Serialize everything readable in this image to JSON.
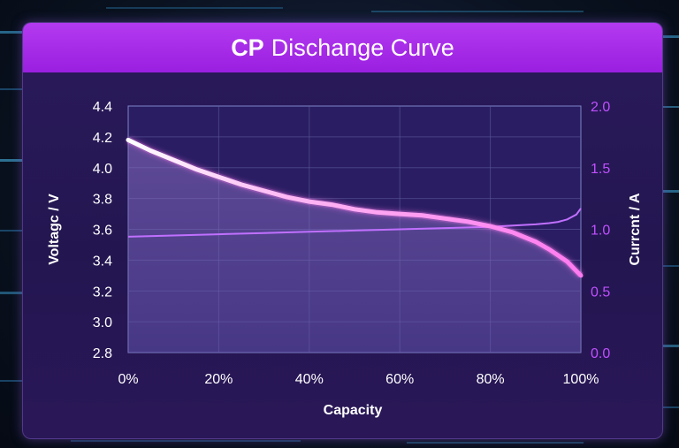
{
  "title_bold": "CP",
  "title_rest": "Dischange Curve",
  "colors": {
    "header": "#a52ae8",
    "voltage_curve": "#ff7af0",
    "current_curve": "#c070ff",
    "left_axis_text": "#ffffff",
    "right_axis_text": "#c050ff",
    "plot_bg": "#2a1d63"
  },
  "chart_data": {
    "type": "line",
    "title": "CP Dischange Curve",
    "xlabel": "Capacity",
    "ylabel_left": "Voltagc / V",
    "ylabel_right": "Currcnt / A",
    "x_ticks": [
      "0%",
      "20%",
      "40%",
      "60%",
      "80%",
      "100%"
    ],
    "y_left_ticks": [
      "2.8",
      "3.0",
      "3.2",
      "3.4",
      "3.6",
      "3.8",
      "4.0",
      "4.2",
      "4.4"
    ],
    "y_right_ticks": [
      "0.0",
      "0.5",
      "1.0",
      "1.5",
      "2.0"
    ],
    "xlim": [
      0,
      100
    ],
    "ylim_left": [
      2.8,
      4.4
    ],
    "ylim_right": [
      0.0,
      2.0
    ],
    "grid": true,
    "series": [
      {
        "axis": "left",
        "x": [
          0,
          5,
          10,
          15,
          20,
          25,
          30,
          35,
          40,
          45,
          50,
          55,
          60,
          65,
          70,
          75,
          80,
          85,
          90,
          93,
          95,
          97,
          98,
          99,
          100
        ],
        "values": [
          4.18,
          4.11,
          4.05,
          3.99,
          3.94,
          3.89,
          3.85,
          3.81,
          3.78,
          3.76,
          3.73,
          3.71,
          3.7,
          3.69,
          3.67,
          3.65,
          3.62,
          3.58,
          3.52,
          3.47,
          3.43,
          3.39,
          3.36,
          3.33,
          3.3
        ]
      },
      {
        "axis": "right",
        "x": [
          0,
          10,
          20,
          30,
          40,
          50,
          60,
          70,
          80,
          85,
          90,
          93,
          95,
          97,
          98,
          99,
          100
        ],
        "values": [
          0.94,
          0.95,
          0.96,
          0.97,
          0.98,
          0.99,
          1.0,
          1.01,
          1.02,
          1.03,
          1.04,
          1.05,
          1.06,
          1.08,
          1.1,
          1.12,
          1.17
        ]
      }
    ]
  }
}
